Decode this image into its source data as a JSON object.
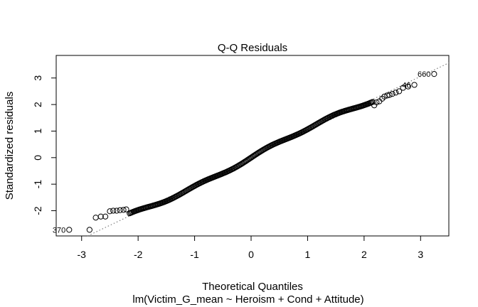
{
  "chart_data": {
    "type": "scatter",
    "title": "Q-Q Residuals",
    "xlabel": "Theoretical Quantiles",
    "subtitle": "lm(Victim_G_mean ~ Heroism + Cond + Attitude)",
    "ylabel": "Standardized residuals",
    "xlim": [
      -3.45,
      3.5
    ],
    "ylim": [
      -2.95,
      3.85
    ],
    "xticks": [
      -3,
      -2,
      -1,
      0,
      1,
      2,
      3
    ],
    "yticks": [
      -2,
      -1,
      0,
      1,
      2,
      3
    ],
    "reference_line": {
      "intercept": 0.0,
      "slope": 1.02,
      "style": "dotted"
    },
    "outlier_labels": [
      {
        "label": "660",
        "x": 3.24,
        "y": 3.15
      },
      {
        "label": "46",
        "x": 2.89,
        "y": 2.74
      },
      {
        "label": "370",
        "x": -3.22,
        "y": -2.72
      }
    ],
    "grid": false,
    "point_marker": "open-circle"
  }
}
